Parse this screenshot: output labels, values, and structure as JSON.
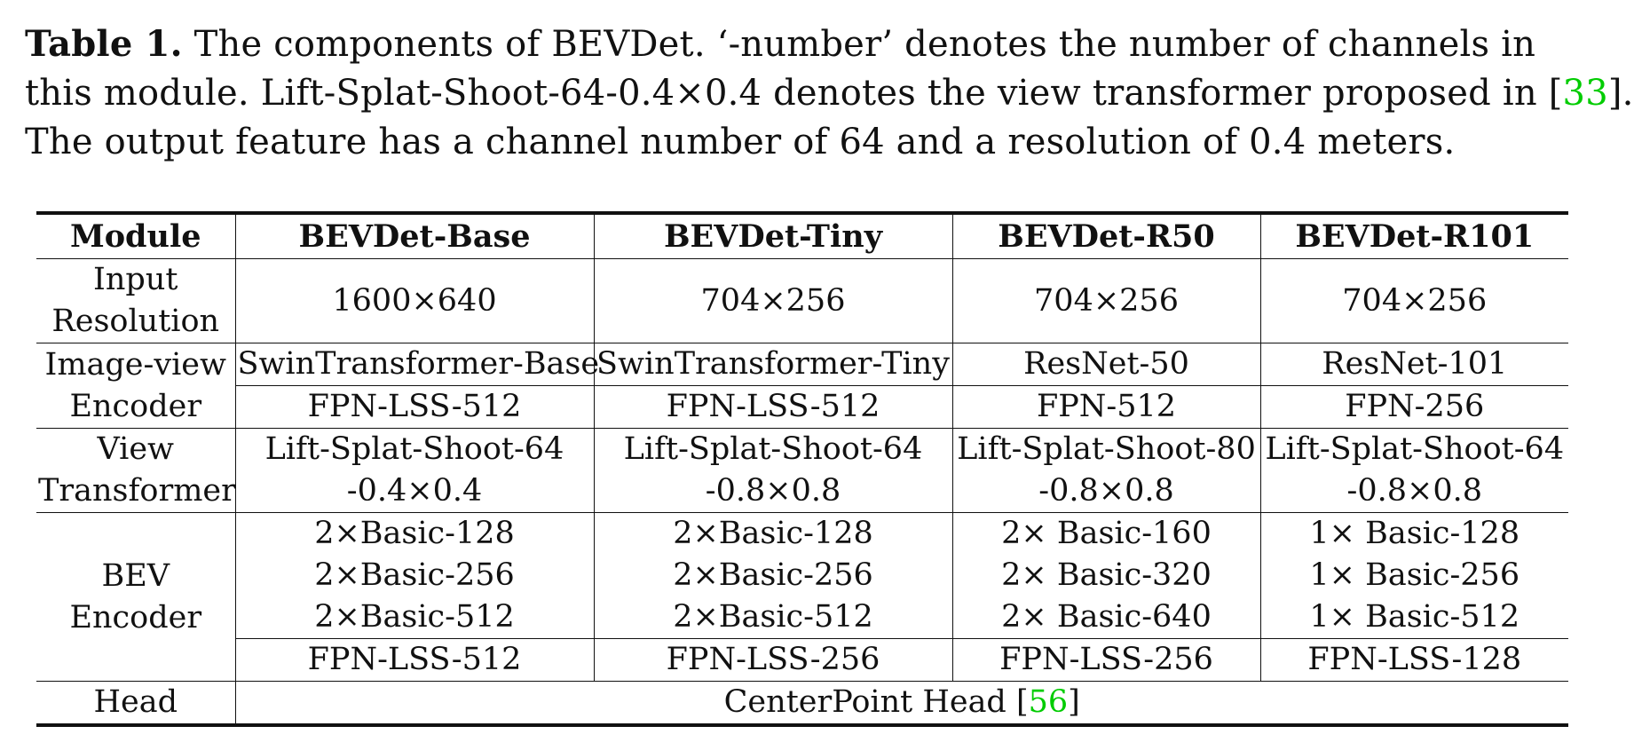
{
  "caption": {
    "label": "Table 1.",
    "line1_text": " The components of BEVDet. ‘-number’ denotes the number of channels in",
    "line2_pre": "this module. Lift-Splat-Shoot-64-0.4×0.4 denotes the view transformer proposed in [",
    "line2_cite": "33",
    "line2_post": "].",
    "line3": "The output feature has a channel number of 64 and a resolution of 0.4 meters."
  },
  "table": {
    "headers": [
      "Module",
      "BEVDet-Base",
      "BEVDet-Tiny",
      "BEVDet-R50",
      "BEVDet-R101"
    ],
    "input_resolution": {
      "module": [
        "Input",
        "Resolution"
      ],
      "values": [
        "1600×640",
        "704×256",
        "704×256",
        "704×256"
      ]
    },
    "image_view_encoder": {
      "module": [
        "Image-view",
        "Encoder"
      ],
      "backbone": [
        "SwinTransformer-Base",
        "SwinTransformer-Tiny",
        "ResNet-50",
        "ResNet-101"
      ],
      "neck": [
        "FPN-LSS-512",
        "FPN-LSS-512",
        "FPN-512",
        "FPN-256"
      ]
    },
    "view_transformer": {
      "module": [
        "View",
        "Transformer"
      ],
      "values": [
        [
          "Lift-Splat-Shoot-64",
          "-0.4×0.4"
        ],
        [
          "Lift-Splat-Shoot-64",
          "-0.8×0.8"
        ],
        [
          "Lift-Splat-Shoot-80",
          "-0.8×0.8"
        ],
        [
          "Lift-Splat-Shoot-64",
          "-0.8×0.8"
        ]
      ]
    },
    "bev_encoder": {
      "module": [
        "BEV",
        "Encoder"
      ],
      "blocks": [
        [
          "2×Basic-128",
          "2×Basic-256",
          "2×Basic-512"
        ],
        [
          "2×Basic-128",
          "2×Basic-256",
          "2×Basic-512"
        ],
        [
          "2× Basic-160",
          "2× Basic-320",
          "2× Basic-640"
        ],
        [
          "1× Basic-128",
          "1× Basic-256",
          "1× Basic-512"
        ]
      ],
      "neck": [
        "FPN-LSS-512",
        "FPN-LSS-256",
        "FPN-LSS-256",
        "FPN-LSS-128"
      ]
    },
    "head": {
      "module": "Head",
      "value_pre": "CenterPoint Head [",
      "value_cite": "56",
      "value_post": "]"
    }
  }
}
